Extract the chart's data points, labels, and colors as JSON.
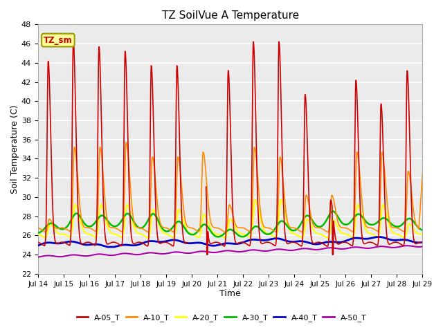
{
  "title": "TZ SoilVue A Temperature",
  "xlabel": "Time",
  "ylabel": "Soil Temperature (C)",
  "ylim": [
    22,
    48
  ],
  "yticks": [
    22,
    24,
    26,
    28,
    30,
    32,
    34,
    36,
    38,
    40,
    42,
    44,
    46,
    48
  ],
  "legend_label": "TZ_sm",
  "legend_label_color": "#cc0000",
  "legend_box_color": "#ffff99",
  "legend_box_edge": "#999900",
  "xtick_labels": [
    "Jul 14",
    "Jul 15",
    "Jul 16",
    "Jul 17",
    "Jul 18",
    "Jul 19",
    "Jul 20",
    "Jul 21",
    "Jul 22",
    "Jul 23",
    "Jul 24",
    "Jul 25",
    "Jul 26",
    "Jul 27",
    "Jul 28",
    "Jul 29"
  ],
  "series_colors": {
    "A-05_T": "#cc0000",
    "A-10_T": "#ff8c00",
    "A-20_T": "#ffff00",
    "A-30_T": "#00bb00",
    "A-40_T": "#0000cc",
    "A-50_T": "#aa00aa"
  },
  "background_color": "#ebebeb",
  "line_widths": {
    "A-05_T": 1.2,
    "A-10_T": 1.2,
    "A-20_T": 1.5,
    "A-30_T": 1.8,
    "A-40_T": 2.0,
    "A-50_T": 1.5
  }
}
